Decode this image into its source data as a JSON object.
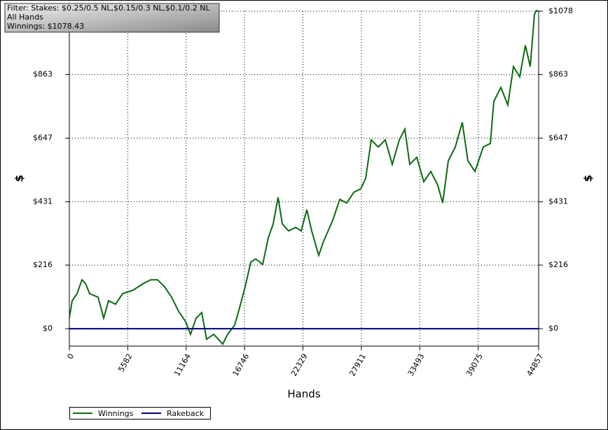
{
  "chart_data": {
    "type": "line",
    "annotations": [
      "Filter: Stakes: $0.25/0.5 NL,$0.15/0.3 NL,$0.1/0.2 NL",
      "All Hands",
      "Winnings: $1078.43"
    ],
    "x_label": "Hands",
    "y_label": "$",
    "xlim": [
      0,
      44857
    ],
    "xticks": [
      0,
      5582,
      11164,
      16746,
      22329,
      27911,
      33493,
      39075,
      44857
    ],
    "ylim": [
      -59,
      1078
    ],
    "yticks": [
      {
        "value": 0,
        "label": "$0"
      },
      {
        "value": 216,
        "label": "$216"
      },
      {
        "value": 431,
        "label": "$431"
      },
      {
        "value": 647,
        "label": "$647"
      },
      {
        "value": 863,
        "label": "$863"
      },
      {
        "value": 1078,
        "label": "$1078"
      }
    ],
    "grid": true,
    "legend": "bottom-left",
    "series": [
      {
        "name": "Winnings",
        "color": "#0b6b10",
        "x": [
          0,
          268,
          737,
          1205,
          1540,
          1942,
          2745,
          3280,
          3749,
          4419,
          5088,
          6092,
          7096,
          7766,
          8436,
          9105,
          9775,
          10444,
          11114,
          11583,
          12118,
          12654,
          13122,
          13792,
          14662,
          15131,
          15800,
          16269,
          16805,
          17340,
          17809,
          18478,
          19014,
          19482,
          19951,
          20353,
          20955,
          21625,
          22160,
          22696,
          23164,
          23834,
          24302,
          25173,
          25842,
          26512,
          27181,
          27851,
          28320,
          28855,
          29525,
          30194,
          30864,
          31533,
          32069,
          32537,
          33207,
          33876,
          34546,
          35215,
          35684,
          36219,
          36889,
          37558,
          38094,
          38763,
          39567,
          40236,
          40571,
          41240,
          41910,
          42445,
          43048,
          43584,
          44052,
          44454,
          44655,
          44857
        ],
        "values": [
          36,
          95,
          119,
          166,
          154,
          119,
          107,
          36,
          95,
          83,
          119,
          131,
          154,
          166,
          166,
          142,
          107,
          59,
          24,
          -19,
          36,
          55,
          -36,
          -19,
          -52,
          -19,
          12,
          71,
          142,
          226,
          237,
          218,
          309,
          356,
          446,
          356,
          332,
          344,
          332,
          404,
          332,
          249,
          297,
          368,
          439,
          427,
          463,
          475,
          510,
          641,
          617,
          641,
          558,
          641,
          677,
          558,
          582,
          499,
          534,
          487,
          427,
          570,
          617,
          700,
          570,
          534,
          617,
          629,
          772,
          819,
          760,
          890,
          855,
          962,
          890,
          1068,
          1080,
          1078
        ]
      },
      {
        "name": "Rakeback",
        "color": "#000080",
        "x": [
          0,
          44857
        ],
        "values": [
          0,
          0
        ]
      }
    ]
  }
}
